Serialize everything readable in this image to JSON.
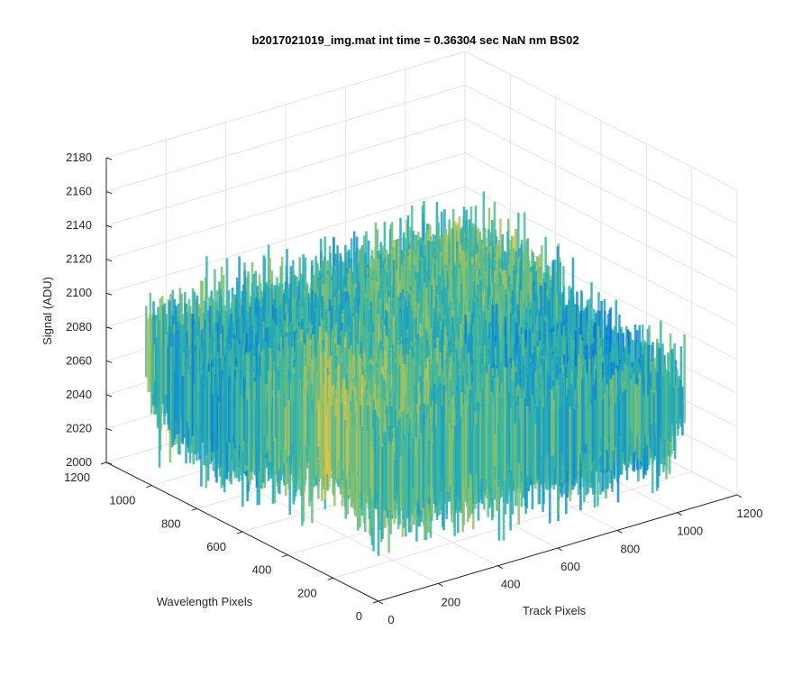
{
  "chart_data": {
    "type": "surface",
    "title": "b2017021019_img.mat int time = 0.36304 sec  NaN nm BS02",
    "xlabel": "Track Pixels",
    "ylabel": "Wavelength Pixels",
    "zlabel": "Signal (ADU)",
    "xlim": [
      0,
      1200
    ],
    "ylim": [
      0,
      1200
    ],
    "zlim": [
      2000,
      2180
    ],
    "xticks": [
      "0",
      "200",
      "400",
      "600",
      "800",
      "1000",
      "1200"
    ],
    "yticks": [
      "0",
      "200",
      "400",
      "600",
      "800",
      "1000",
      "1200"
    ],
    "zticks": [
      "2000",
      "2020",
      "2040",
      "2060",
      "2080",
      "2100",
      "2120",
      "2140",
      "2160",
      "2180"
    ],
    "grid": true,
    "colormap": [
      "#0a72d8",
      "#1aa1c4",
      "#3db7a0",
      "#8cc26a",
      "#e0c248"
    ],
    "surface_extent": {
      "x": [
        0,
        1024
      ],
      "y": [
        0,
        1024
      ]
    },
    "signal_mean": 2065,
    "signal_range": [
      2010,
      2150
    ]
  },
  "colors": {
    "grid": "#e3e3e3",
    "axis": "#262626",
    "background": "#ffffff"
  }
}
